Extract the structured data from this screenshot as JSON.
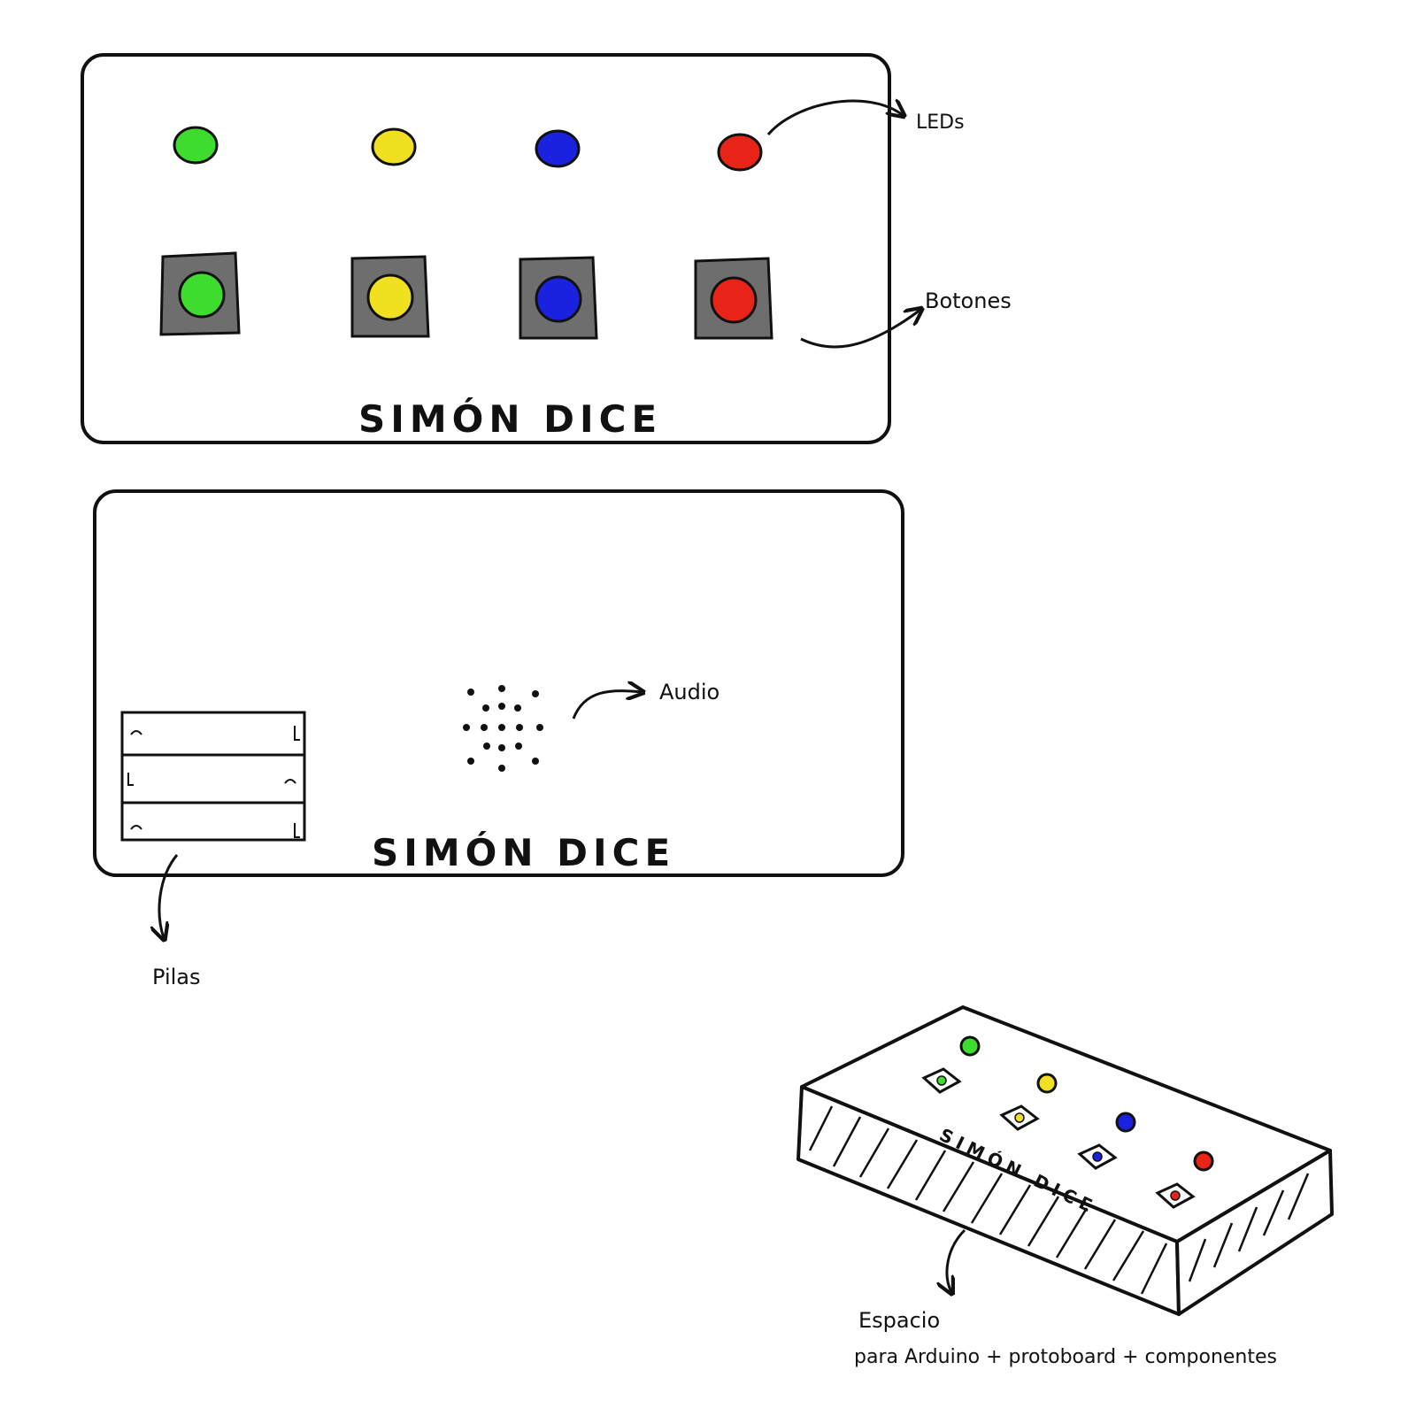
{
  "front_view": {
    "title": "SIMÓN DICE",
    "leds_label": "LEDs",
    "buttons_label": "Botones",
    "colors": [
      "#3ddc2e",
      "#f0e020",
      "#1a22e0",
      "#e82418"
    ]
  },
  "back_view": {
    "title": "SIMÓN DICE",
    "audio_label": "Audio",
    "battery_label": "Pilas"
  },
  "iso_view": {
    "title": "SIMÓN DICE",
    "space_label_line1": "Espacio",
    "space_label_line2": "para Arduino + protoboard + componentes"
  },
  "colors": {
    "ink": "#111111",
    "button_base": "#6e6e6e"
  }
}
